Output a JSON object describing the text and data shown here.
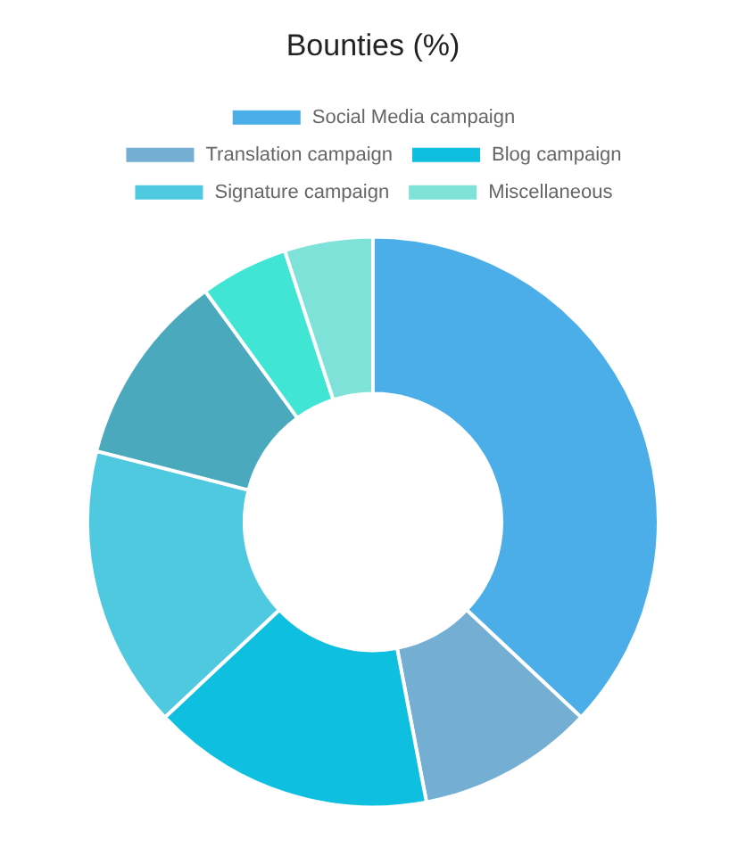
{
  "chart_data": {
    "type": "donut",
    "title": "Bounties (%)",
    "categories": [
      "Social Media campaign",
      "Translation campaign",
      "Blog campaign",
      "Signature campaign",
      null,
      null,
      "Miscellaneous"
    ],
    "values": [
      37,
      10,
      16,
      16,
      11,
      5,
      5
    ],
    "colors": [
      "#4baee8",
      "#74aed3",
      "#0fbfe0",
      "#4fc9e0",
      "#4aa9bd",
      "#40e6d3",
      "#7fe2d8"
    ],
    "legend": "top"
  }
}
